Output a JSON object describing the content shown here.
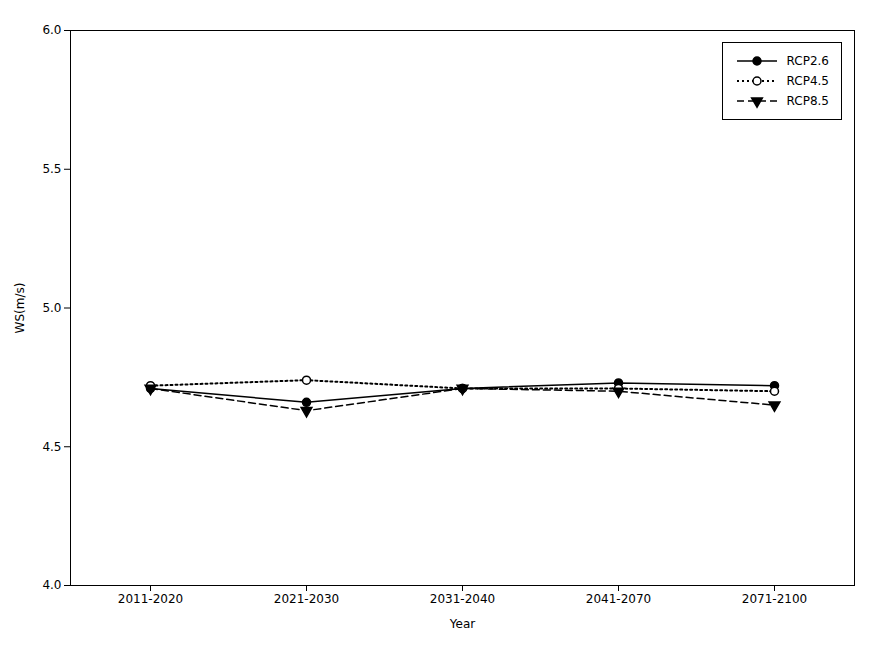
{
  "chart_data": {
    "type": "line",
    "categories": [
      "2011-2020",
      "2021-2030",
      "2031-2040",
      "2041-2070",
      "2071-2100"
    ],
    "series": [
      {
        "name": "RCP2.6",
        "color": "#000000",
        "values": [
          4.71,
          4.66,
          4.71,
          4.73,
          4.72
        ],
        "line_style": "solid",
        "marker": "circle"
      },
      {
        "name": "RCP4.5",
        "color": "#000000",
        "values": [
          4.72,
          4.74,
          4.71,
          4.71,
          4.7
        ],
        "line_style": "dotted",
        "marker": "open-circle"
      },
      {
        "name": "RCP8.5",
        "color": "#000000",
        "values": [
          4.71,
          4.63,
          4.71,
          4.7,
          4.65
        ],
        "line_style": "dashed",
        "marker": "triangle-down"
      }
    ],
    "xlabel": "Year",
    "ylabel": "WS(m/s)",
    "ylim": [
      4,
      6
    ],
    "yticks": [
      {
        "value": 4,
        "label": "4.0"
      },
      4.5,
      {
        "value": 5,
        "label": "5.0"
      },
      5.5,
      {
        "value": 6,
        "label": "6.0"
      }
    ],
    "legend": "upper right",
    "grid": false
  }
}
